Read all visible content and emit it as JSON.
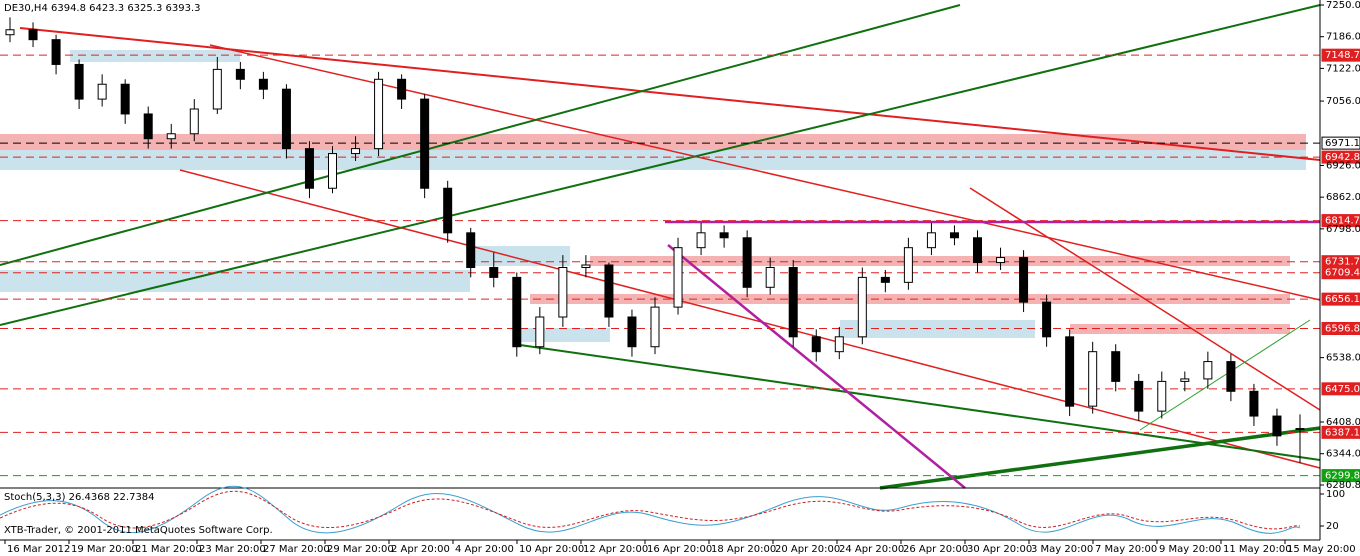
{
  "header": {
    "symbol": "DE30,H4 6394.8 6423.3 6325.3 6393.3"
  },
  "price_axis": {
    "ylim": [
      6280.8,
      7250
    ],
    "ticks": [
      {
        "value": 7250,
        "label": "7250.0"
      },
      {
        "value": 7186,
        "label": "7186.0"
      },
      {
        "value": 7122,
        "label": "7122.0"
      },
      {
        "value": 7056,
        "label": "7056.0"
      },
      {
        "value": 6926,
        "label": "6926.0"
      },
      {
        "value": 6862,
        "label": "6862.0"
      },
      {
        "value": 6798,
        "label": "6798.0"
      },
      {
        "value": 6538,
        "label": "6538.0"
      },
      {
        "value": 6408,
        "label": "6408.0"
      },
      {
        "value": 6344,
        "label": "6344.0"
      },
      6280.8
    ]
  },
  "levels": [
    {
      "value": 7148.7,
      "color": "#e02020"
    },
    {
      "value": 6971.1,
      "color": "#ffffff"
    },
    {
      "value": 6942.8,
      "color": "#e02020"
    },
    {
      "value": 6814.7,
      "color": "#e02020"
    },
    {
      "value": 6731.7,
      "color": "#e02020"
    },
    {
      "value": 6709.4,
      "color": "#e02020"
    },
    {
      "value": 6656.1,
      "color": "#e02020"
    },
    {
      "value": 6596.8,
      "color": "#e02020"
    },
    {
      "value": 6475,
      "label": "6475.0",
      "color": "#e02020"
    },
    {
      "value": 6387.1,
      "color": "#e02020"
    },
    {
      "value": 6299.8,
      "color": "#10a010"
    }
  ],
  "candles": [
    [
      7190,
      7225,
      7175,
      7200
    ],
    [
      7200,
      7215,
      7165,
      7180
    ],
    [
      7180,
      7190,
      7110,
      7130
    ],
    [
      7130,
      7140,
      7040,
      7060
    ],
    [
      7060,
      7110,
      7045,
      7090
    ],
    [
      7090,
      7100,
      7010,
      7030
    ],
    [
      7030,
      7045,
      6960,
      6980
    ],
    [
      6980,
      7010,
      6960,
      6990
    ],
    [
      6990,
      7060,
      6975,
      7040
    ],
    [
      7040,
      7145,
      7030,
      7120
    ],
    [
      7120,
      7135,
      7080,
      7100
    ],
    [
      7100,
      7115,
      7060,
      7080
    ],
    [
      7080,
      7090,
      6940,
      6960
    ],
    [
      6960,
      6975,
      6860,
      6880
    ],
    [
      6880,
      6965,
      6870,
      6950
    ],
    [
      6950,
      6985,
      6935,
      6960
    ],
    [
      6960,
      7115,
      6945,
      7100
    ],
    [
      7100,
      7110,
      7040,
      7060
    ],
    [
      7060,
      7070,
      6860,
      6880
    ],
    [
      6880,
      6895,
      6770,
      6790
    ],
    [
      6790,
      6800,
      6700,
      6720
    ],
    [
      6720,
      6750,
      6680,
      6700
    ],
    [
      6700,
      6710,
      6540,
      6560
    ],
    [
      6560,
      6640,
      6545,
      6620
    ],
    [
      6620,
      6745,
      6600,
      6720
    ],
    [
      6720,
      6745,
      6700,
      6725
    ],
    [
      6725,
      6730,
      6600,
      6620
    ],
    [
      6620,
      6635,
      6540,
      6560
    ],
    [
      6560,
      6660,
      6545,
      6640
    ],
    [
      6640,
      6780,
      6625,
      6760
    ],
    [
      6760,
      6810,
      6745,
      6790
    ],
    [
      6790,
      6805,
      6760,
      6780
    ],
    [
      6780,
      6795,
      6660,
      6680
    ],
    [
      6680,
      6740,
      6665,
      6720
    ],
    [
      6720,
      6735,
      6560,
      6580
    ],
    [
      6580,
      6595,
      6530,
      6550
    ],
    [
      6550,
      6600,
      6535,
      6580
    ],
    [
      6580,
      6720,
      6565,
      6700
    ],
    [
      6700,
      6715,
      6670,
      6690
    ],
    [
      6690,
      6780,
      6675,
      6760
    ],
    [
      6760,
      6810,
      6745,
      6790
    ],
    [
      6790,
      6805,
      6765,
      6780
    ],
    [
      6780,
      6795,
      6710,
      6730
    ],
    [
      6730,
      6760,
      6715,
      6740
    ],
    [
      6740,
      6755,
      6630,
      6650
    ],
    [
      6650,
      6665,
      6560,
      6580
    ],
    [
      6580,
      6595,
      6420,
      6440
    ],
    [
      6440,
      6570,
      6425,
      6550
    ],
    [
      6550,
      6565,
      6470,
      6490
    ],
    [
      6490,
      6505,
      6410,
      6430
    ],
    [
      6430,
      6510,
      6415,
      6490
    ],
    [
      6490,
      6510,
      6470,
      6495
    ],
    [
      6495,
      6550,
      6475,
      6530
    ],
    [
      6530,
      6545,
      6450,
      6470
    ],
    [
      6470,
      6485,
      6400,
      6420
    ],
    [
      6420,
      6435,
      6360,
      6380
    ],
    [
      6394.8,
      6423.3,
      6325.3,
      6393.3
    ]
  ],
  "dates": [
    "16 Mar 2012",
    "19 Mar 20:00",
    "21 Mar 20:00",
    "23 Mar 20:00",
    "27 Mar 20:00",
    "29 Mar 20:00",
    "2 Apr 20:00",
    "4 Apr 20:00",
    "10 Apr 20:00",
    "12 Apr 20:00",
    "16 Apr 20:00",
    "18 Apr 20:00",
    "20 Apr 20:00",
    "24 Apr 20:00",
    "26 Apr 20:00",
    "30 Apr 20:00",
    "3 May 20:00",
    "7 May 20:00",
    "9 May 20:00",
    "11 May 20:00",
    "15 May 20:00"
  ],
  "indicator": {
    "label": "Stoch(5,3,3) 26.4368 22.7384",
    "ticks": [
      100,
      20
    ]
  },
  "footer": {
    "copyright": "XTB-Trader, © 2001-2011 MetaQuotes Software Corp."
  }
}
